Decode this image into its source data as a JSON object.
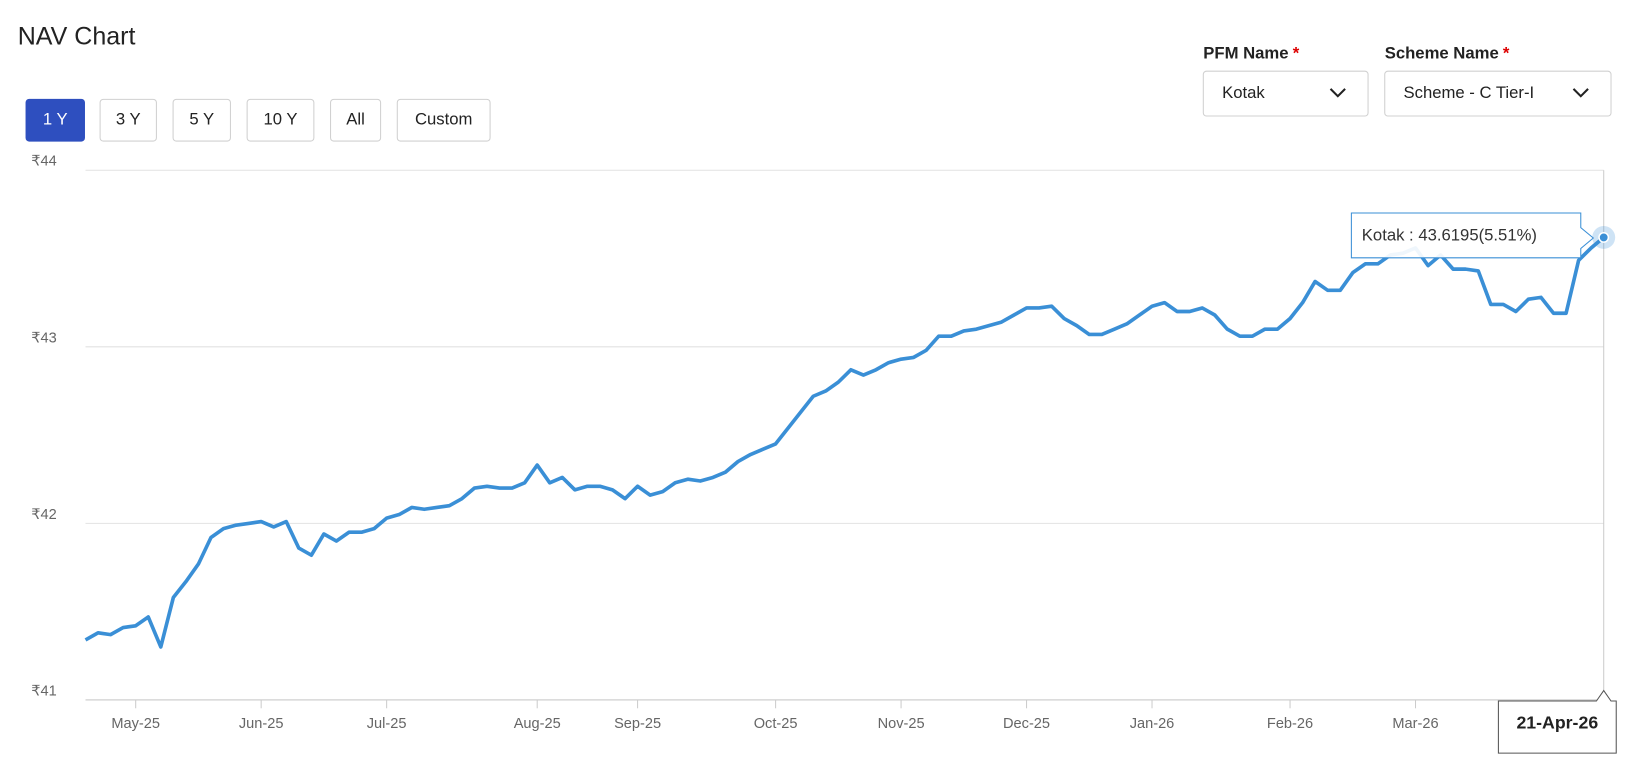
{
  "header": {
    "title": "NAV Chart"
  },
  "range_buttons": {
    "items": [
      "1 Y",
      "3 Y",
      "5 Y",
      "10 Y",
      "All",
      "Custom"
    ],
    "active": 0
  },
  "filters": [
    {
      "label": "PFM Name",
      "required": "*",
      "value": "Kotak"
    },
    {
      "label": "Scheme Name",
      "required": "*",
      "value": "Scheme - C Tier-I"
    }
  ],
  "chart_data": {
    "type": "line",
    "color": "#3a8fd6",
    "grid": true,
    "ylim": [
      41,
      44
    ],
    "yticks": [
      {
        "value": 41,
        "label": "₹41"
      },
      {
        "value": 42,
        "label": "₹42"
      },
      {
        "value": 43,
        "label": "₹43"
      },
      {
        "value": 44,
        "label": "₹44"
      }
    ],
    "tooltip": "Kotak : 43.6195(5.51%)",
    "categories": [
      null,
      null,
      null,
      null,
      "May-25",
      null,
      null,
      null,
      null,
      null,
      null,
      null,
      null,
      null,
      "Jun-25",
      null,
      null,
      null,
      null,
      null,
      null,
      null,
      null,
      null,
      "Jul-25",
      null,
      null,
      null,
      null,
      null,
      null,
      null,
      null,
      null,
      null,
      null,
      "Aug-25",
      null,
      null,
      null,
      null,
      null,
      null,
      null,
      "Sep-25",
      null,
      null,
      null,
      null,
      null,
      null,
      null,
      null,
      null,
      null,
      "Oct-25",
      null,
      null,
      null,
      null,
      null,
      null,
      null,
      null,
      null,
      "Nov-25",
      null,
      null,
      null,
      null,
      null,
      null,
      null,
      null,
      null,
      "Dec-25",
      null,
      null,
      null,
      null,
      null,
      null,
      null,
      null,
      null,
      "Jan-26",
      null,
      null,
      null,
      null,
      null,
      null,
      null,
      null,
      null,
      null,
      "Feb-26",
      null,
      null,
      null,
      null,
      null,
      null,
      null,
      null,
      null,
      "Mar-26",
      null,
      null,
      null,
      null,
      null,
      null,
      null,
      null,
      null,
      null,
      null,
      null,
      null,
      null,
      "21-Apr-26"
    ],
    "values": [
      41.34,
      41.38,
      41.37,
      41.41,
      41.42,
      41.47,
      41.3,
      41.58,
      41.67,
      41.77,
      41.92,
      41.97,
      41.99,
      42.0,
      42.01,
      41.98,
      42.01,
      41.86,
      41.82,
      41.94,
      41.9,
      41.95,
      41.95,
      41.97,
      42.03,
      42.05,
      42.09,
      42.08,
      42.09,
      42.1,
      42.14,
      42.2,
      42.21,
      42.2,
      42.2,
      42.23,
      42.33,
      42.23,
      42.26,
      42.19,
      42.21,
      42.21,
      42.19,
      42.14,
      42.21,
      42.16,
      42.18,
      42.23,
      42.25,
      42.24,
      42.26,
      42.29,
      42.35,
      42.39,
      42.42,
      42.45,
      42.54,
      42.63,
      42.72,
      42.75,
      42.8,
      42.87,
      42.84,
      42.87,
      42.91,
      42.93,
      42.94,
      42.98,
      43.06,
      43.06,
      43.09,
      43.1,
      43.12,
      43.14,
      43.18,
      43.22,
      43.22,
      43.23,
      43.16,
      43.12,
      43.07,
      43.07,
      43.1,
      43.13,
      43.18,
      43.23,
      43.25,
      43.2,
      43.2,
      43.22,
      43.18,
      43.1,
      43.06,
      43.06,
      43.1,
      43.1,
      43.16,
      43.25,
      43.37,
      43.32,
      43.32,
      43.42,
      43.47,
      43.47,
      43.52,
      43.53,
      43.56,
      43.46,
      43.52,
      43.44,
      43.44,
      43.43,
      43.24,
      43.24,
      43.2,
      43.27,
      43.28,
      43.19,
      43.19,
      43.49,
      43.56,
      43.6195
    ]
  }
}
